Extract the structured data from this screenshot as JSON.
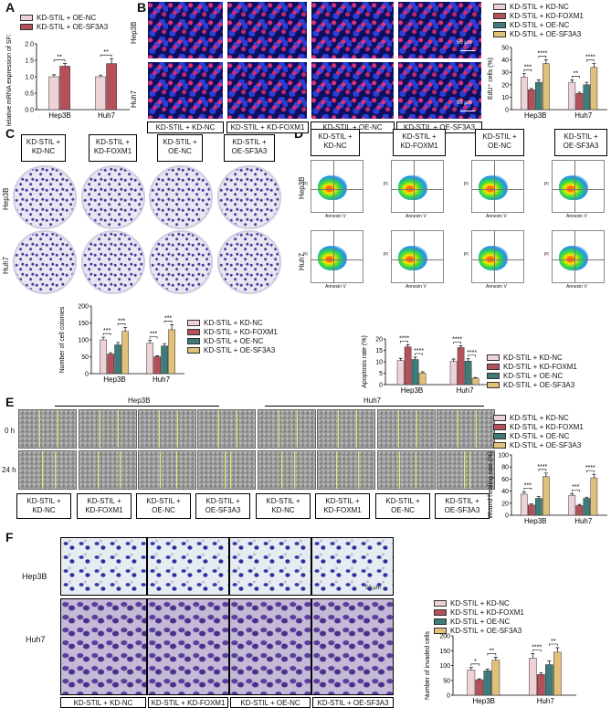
{
  "panel_labels": [
    "A",
    "B",
    "C",
    "D",
    "E",
    "F"
  ],
  "colors": {
    "nc": "#efd2d6",
    "foxm1": "#b4505a",
    "oenc": "#3f7c79",
    "sf3a3": "#e1c07a",
    "oe_sf3a3_A": "#b4505a"
  },
  "panel_a": {
    "legend": [
      "KD-STIL + OE-NC",
      "KD-STIL + OE-SF3A3"
    ]
  },
  "panel_b": {
    "row_labels": [
      "Hep3B",
      "Huh7"
    ],
    "scale_label": "50 μm",
    "col_labels": [
      "KD-STIL + KD-NC",
      "KD-STIL + KD-FOXM1",
      "KD-STIL + OE-NC",
      "KD-STIL + OE-SF3A3"
    ]
  },
  "legend4": [
    "KD-STIL + KD-NC",
    "KD-STIL + KD-FOXM1",
    "KD-STIL + OE-NC",
    "KD-STIL + OE-SF3A3"
  ],
  "panel_c": {
    "col_labels": [
      [
        "KD-STIL +",
        "KD-NC"
      ],
      [
        "KD-STIL +",
        "KD-FOXM1"
      ],
      [
        "KD-STIL +",
        "OE-NC"
      ],
      [
        "KD-STIL +",
        "OE-SF3A3"
      ]
    ],
    "row_labels": [
      "Hep3B",
      "Huh7"
    ]
  },
  "panel_d": {
    "col_labels": [
      [
        "KD-STIL +",
        "KD-NC"
      ],
      [
        "KD-STIL +",
        "KD-FOXM1"
      ],
      [
        "KD-STIL +",
        "OE-NC"
      ],
      [
        "KD-STIL +",
        "OE-SF3A3"
      ]
    ],
    "row_labels": [
      "Hep3B",
      "Huh7"
    ],
    "x_axis": "Annexin V",
    "y_axis": "PI"
  },
  "panel_e": {
    "group_labels": [
      "Hep3B",
      "Huh7"
    ],
    "row_labels": [
      "0 h",
      "24 h"
    ],
    "col_labels": [
      [
        "KD-STIL +",
        "KD-NC"
      ],
      [
        "KD-STIL +",
        "KD-FOXM1"
      ],
      [
        "KD-STIL +",
        "OE-NC"
      ],
      [
        "KD-STIL +",
        "OE-SF3A3"
      ],
      [
        "KD-STIL +",
        "KD-NC"
      ],
      [
        "KD-STIL +",
        "KD-FOXM1"
      ],
      [
        "KD-STIL +",
        "OE-NC"
      ],
      [
        "KD-STIL +",
        "OE-SF3A3"
      ]
    ]
  },
  "panel_f": {
    "row_labels": [
      "Hep3B",
      "Huh7"
    ],
    "col_labels": [
      "KD-STIL + KD-NC",
      "KD-STIL + KD-FOXM1",
      "KD-STIL + OE-NC",
      "KD-STIL + OE-SF3A3"
    ],
    "scale_label": "50 μm"
  },
  "chart_data": [
    {
      "id": "A",
      "type": "bar",
      "categories": [
        "Hep3B",
        "Huh7"
      ],
      "ylabel": "Relative mRNA expression of SF3A3",
      "ylim": [
        0,
        2.0
      ],
      "yticks": [
        "0.0",
        "0.5",
        "1.0",
        "1.5",
        "2.0"
      ],
      "series": [
        {
          "name": "KD-STIL + OE-NC",
          "values": [
            1.0,
            1.0
          ],
          "err": [
            0.06,
            0.05
          ]
        },
        {
          "name": "KD-STIL + OE-SF3A3",
          "values": [
            1.32,
            1.4
          ],
          "err": [
            0.08,
            0.15
          ]
        }
      ],
      "sig": [
        "**",
        "**"
      ]
    },
    {
      "id": "B",
      "type": "bar",
      "categories": [
        "Hep3B",
        "Huh7"
      ],
      "ylabel": "EdU⁺ cells (%)",
      "ylim": [
        0,
        50
      ],
      "yticks": [
        "0",
        "10",
        "20",
        "30",
        "40",
        "50"
      ],
      "series": [
        {
          "name": "KD-STIL + KD-NC",
          "values": [
            26,
            22
          ],
          "err": [
            3,
            2
          ]
        },
        {
          "name": "KD-STIL + KD-FOXM1",
          "values": [
            16,
            13
          ],
          "err": [
            1,
            1
          ]
        },
        {
          "name": "KD-STIL + OE-NC",
          "values": [
            22,
            20
          ],
          "err": [
            2,
            2
          ]
        },
        {
          "name": "KD-STIL + OE-SF3A3",
          "values": [
            37,
            34
          ],
          "err": [
            3,
            3
          ]
        }
      ],
      "sig_left": [
        "***",
        "**"
      ],
      "sig_right": [
        "****",
        "****"
      ]
    },
    {
      "id": "C",
      "type": "bar",
      "categories": [
        "Hep3B",
        "Huh7"
      ],
      "ylabel": "Number of cell colonies",
      "ylim": [
        0,
        200
      ],
      "yticks": [
        "0",
        "50",
        "100",
        "150",
        "200"
      ],
      "series": [
        {
          "name": "KD-STIL + KD-NC",
          "values": [
            100,
            90
          ],
          "err": [
            8,
            8
          ]
        },
        {
          "name": "KD-STIL + KD-FOXM1",
          "values": [
            58,
            50
          ],
          "err": [
            4,
            3
          ]
        },
        {
          "name": "KD-STIL + OE-NC",
          "values": [
            85,
            82
          ],
          "err": [
            7,
            7
          ]
        },
        {
          "name": "KD-STIL + OE-SF3A3",
          "values": [
            125,
            130
          ],
          "err": [
            12,
            15
          ]
        }
      ],
      "sig_left": [
        "***",
        "***"
      ],
      "sig_right": [
        "***",
        "***"
      ]
    },
    {
      "id": "D",
      "type": "bar",
      "categories": [
        "Hep3B",
        "Huh7"
      ],
      "ylabel": "Apoptosis rate (%)",
      "ylim": [
        0,
        20
      ],
      "yticks": [
        "0",
        "5",
        "10",
        "15",
        "20"
      ],
      "series": [
        {
          "name": "KD-STIL + KD-NC",
          "values": [
            10.5,
            10.2
          ],
          "err": [
            1,
            1
          ]
        },
        {
          "name": "KD-STIL + KD-FOXM1",
          "values": [
            16.5,
            16.2
          ],
          "err": [
            1,
            0.8
          ]
        },
        {
          "name": "KD-STIL + OE-NC",
          "values": [
            11,
            10.3
          ],
          "err": [
            1,
            1
          ]
        },
        {
          "name": "KD-STIL + OE-SF3A3",
          "values": [
            5,
            2.8
          ],
          "err": [
            0.6,
            0.3
          ]
        }
      ],
      "sig_left": [
        "****",
        "****"
      ],
      "sig_right": [
        "****",
        "****"
      ]
    },
    {
      "id": "E",
      "type": "bar",
      "categories": [
        "Hep3B",
        "Huh7"
      ],
      "ylabel": "Wound healing rate (%)",
      "ylim": [
        0,
        100
      ],
      "yticks": [
        "0",
        "20",
        "40",
        "60",
        "80",
        "100"
      ],
      "series": [
        {
          "name": "KD-STIL + KD-NC",
          "values": [
            35,
            33
          ],
          "err": [
            4,
            3
          ]
        },
        {
          "name": "KD-STIL + KD-FOXM1",
          "values": [
            17,
            16
          ],
          "err": [
            2,
            2
          ]
        },
        {
          "name": "KD-STIL + OE-NC",
          "values": [
            28,
            28
          ],
          "err": [
            3,
            2
          ]
        },
        {
          "name": "KD-STIL + OE-SF3A3",
          "values": [
            64,
            62
          ],
          "err": [
            6,
            6
          ]
        }
      ],
      "sig_left": [
        "***",
        "***"
      ],
      "sig_right": [
        "****",
        "****"
      ]
    },
    {
      "id": "F",
      "type": "bar",
      "categories": [
        "Hep3B",
        "Huh7"
      ],
      "ylabel": "Number of invaded cells",
      "ylim": [
        0,
        200
      ],
      "yticks": [
        "0",
        "50",
        "100",
        "150",
        "200"
      ],
      "series": [
        {
          "name": "KD-STIL + KD-NC",
          "values": [
            85,
            125
          ],
          "err": [
            8,
            15
          ]
        },
        {
          "name": "KD-STIL + KD-FOXM1",
          "values": [
            52,
            70
          ],
          "err": [
            3,
            6
          ]
        },
        {
          "name": "KD-STIL + OE-NC",
          "values": [
            82,
            103
          ],
          "err": [
            6,
            12
          ]
        },
        {
          "name": "KD-STIL + OE-SF3A3",
          "values": [
            118,
            145
          ],
          "err": [
            10,
            15
          ]
        }
      ],
      "sig_left": [
        "*",
        "****"
      ],
      "sig_right": [
        "**",
        "**"
      ]
    }
  ]
}
